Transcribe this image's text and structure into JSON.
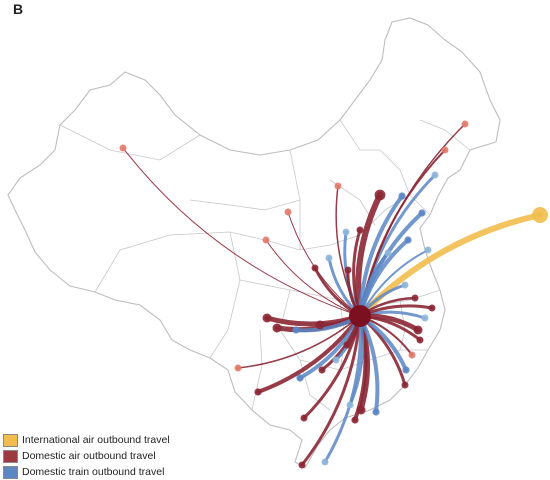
{
  "panel_label": "B",
  "colors": {
    "international": "#f2bd4e",
    "domestic_air": "#8b2634",
    "domestic_train": "#5b86c4",
    "hub": "#7a1020"
  },
  "legend": [
    {
      "label": "International air outbound travel",
      "color": "#f2bd4e"
    },
    {
      "label": "Domestic air outbound travel",
      "color": "#9c3a3f"
    },
    {
      "label": "Domestic train outbound travel",
      "color": "#5b86c4"
    }
  ]
}
